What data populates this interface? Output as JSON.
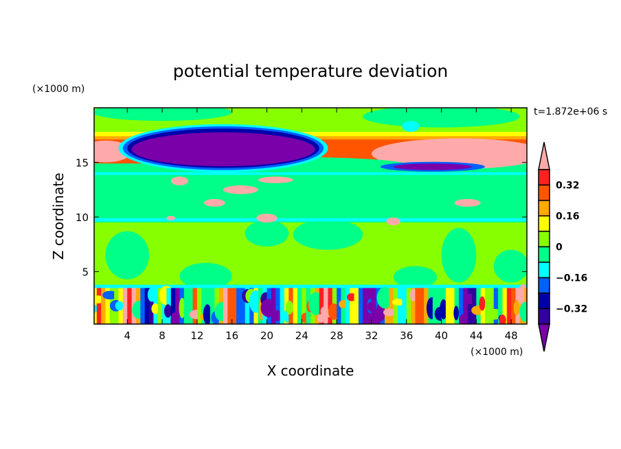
{
  "chart_data": {
    "type": "heatmap",
    "subtype": "filled-contour",
    "title": "potential temperature deviation",
    "xlabel": "X coordinate",
    "ylabel": "Z coordinate",
    "x_unit": "(×1000 m)",
    "y_unit": "(×1000 m)",
    "time_label": "t=1.872e+06 s",
    "xlim": [
      0.2,
      49.8
    ],
    "ylim": [
      0.2,
      20
    ],
    "xticks": [
      4,
      8,
      12,
      16,
      20,
      24,
      28,
      32,
      36,
      40,
      44,
      48
    ],
    "yticks": [
      5,
      10,
      15
    ],
    "colorbar": {
      "levels": [
        -0.4,
        -0.32,
        -0.24,
        -0.16,
        -0.08,
        0,
        0.08,
        0.16,
        0.24,
        0.32,
        0.4
      ],
      "tick_labels": [
        "0.32",
        "0.16",
        "0",
        "−0.16",
        "−0.32"
      ],
      "tick_values": [
        0.32,
        0.16,
        0,
        -0.16,
        -0.32
      ],
      "colors": [
        "#7a00aa",
        "#3300a0",
        "#0000aa",
        "#0060ff",
        "#00ffff",
        "#00ff88",
        "#88ff00",
        "#ffff00",
        "#ffaa00",
        "#ff5500",
        "#ff2020",
        "#ffaaaa"
      ],
      "extend": "both"
    },
    "regions": [
      {
        "c": 5,
        "shape": "rect",
        "x0": 0,
        "x1": 50,
        "z0": 0,
        "z1": 20
      },
      {
        "c": 6,
        "shape": "rect",
        "x0": 0,
        "x1": 50,
        "z0": 3.7,
        "z1": 9.5
      },
      {
        "c": 5,
        "shape": "ellipse",
        "x": 4,
        "z": 6.5,
        "rx": 2.5,
        "rz": 2.2
      },
      {
        "c": 5,
        "shape": "ellipse",
        "x": 13,
        "z": 4.6,
        "rx": 3,
        "rz": 1.2
      },
      {
        "c": 5,
        "shape": "ellipse",
        "x": 20,
        "z": 8.5,
        "rx": 2.5,
        "rz": 1.2
      },
      {
        "c": 5,
        "shape": "ellipse",
        "x": 27,
        "z": 8.4,
        "rx": 4,
        "rz": 1.4
      },
      {
        "c": 5,
        "shape": "ellipse",
        "x": 37,
        "z": 4.5,
        "rx": 2.5,
        "rz": 1.0
      },
      {
        "c": 5,
        "shape": "ellipse",
        "x": 42,
        "z": 6.5,
        "rx": 2,
        "rz": 2.5
      },
      {
        "c": 5,
        "shape": "ellipse",
        "x": 48,
        "z": 5.5,
        "rx": 2,
        "rz": 1.5
      },
      {
        "c": 4,
        "shape": "rect",
        "x0": 0,
        "x1": 50,
        "z0": 3.5,
        "z1": 3.8
      },
      {
        "c": 4,
        "shape": "rect",
        "x0": 0,
        "x1": 50,
        "z0": 9.6,
        "z1": 9.9
      },
      {
        "c": 4,
        "shape": "rect",
        "x0": 0,
        "x1": 50,
        "z0": 13.85,
        "z1": 14.1
      },
      {
        "c": 6,
        "shape": "rect",
        "x0": 0,
        "x1": 50,
        "z0": 17.3,
        "z1": 20
      },
      {
        "c": 5,
        "shape": "ellipse",
        "x": 8,
        "z": 19.6,
        "rx": 8,
        "rz": 0.8
      },
      {
        "c": 5,
        "shape": "ellipse",
        "x": 40,
        "z": 19.2,
        "rx": 9,
        "rz": 1.0
      },
      {
        "c": 7,
        "shape": "rect",
        "x0": 0,
        "x1": 50,
        "z0": 15.8,
        "z1": 17.8
      },
      {
        "c": 8,
        "shape": "rect",
        "x0": 0,
        "x1": 50,
        "z0": 15.2,
        "z1": 17.4
      },
      {
        "c": 9,
        "shape": "rect",
        "x0": 0,
        "x1": 50,
        "z0": 14.9,
        "z1": 17.1
      },
      {
        "c": 11,
        "shape": "ellipse",
        "x": 1.5,
        "z": 16,
        "rx": 3,
        "rz": 1.0
      },
      {
        "c": 11,
        "shape": "ellipse",
        "x": 42,
        "z": 15.8,
        "rx": 10,
        "rz": 1.4
      },
      {
        "c": 5,
        "shape": "ellipse",
        "x": 22,
        "z": 14.8,
        "rx": 14,
        "rz": 0.7
      },
      {
        "c": 4,
        "shape": "ellipse",
        "x": 15,
        "z": 16.3,
        "rx": 12,
        "rz": 2.2
      },
      {
        "c": 3,
        "shape": "ellipse",
        "x": 15,
        "z": 16.3,
        "rx": 11.5,
        "rz": 2.0
      },
      {
        "c": 2,
        "shape": "ellipse",
        "x": 15,
        "z": 16.3,
        "rx": 11,
        "rz": 1.8
      },
      {
        "c": 0,
        "shape": "ellipse",
        "x": 15,
        "z": 16.2,
        "rx": 10.5,
        "rz": 1.55
      },
      {
        "c": 3,
        "shape": "ellipse",
        "x": 39,
        "z": 14.6,
        "rx": 6,
        "rz": 0.45
      },
      {
        "c": 0,
        "shape": "ellipse",
        "x": 39,
        "z": 14.6,
        "rx": 4.5,
        "rz": 0.3
      },
      {
        "c": 4,
        "shape": "ellipse",
        "x": 36.5,
        "z": 18.3,
        "rx": 1,
        "rz": 0.5
      },
      {
        "c": 11,
        "shape": "ellipse",
        "x": 10,
        "z": 13.3,
        "rx": 1,
        "rz": 0.4
      },
      {
        "c": 11,
        "shape": "ellipse",
        "x": 17,
        "z": 12.5,
        "rx": 2,
        "rz": 0.4
      },
      {
        "c": 11,
        "shape": "ellipse",
        "x": 21,
        "z": 13.4,
        "rx": 2,
        "rz": 0.3
      },
      {
        "c": 11,
        "shape": "ellipse",
        "x": 14,
        "z": 11.3,
        "rx": 1.2,
        "rz": 0.35
      },
      {
        "c": 11,
        "shape": "ellipse",
        "x": 20,
        "z": 9.9,
        "rx": 1.2,
        "rz": 0.4
      },
      {
        "c": 11,
        "shape": "ellipse",
        "x": 34.5,
        "z": 9.6,
        "rx": 0.8,
        "rz": 0.35
      },
      {
        "c": 11,
        "shape": "ellipse",
        "x": 43,
        "z": 11.3,
        "rx": 1.5,
        "rz": 0.35
      },
      {
        "c": 11,
        "shape": "ellipse",
        "x": 9,
        "z": 9.9,
        "rx": 0.5,
        "rz": 0.2
      }
    ],
    "boundary_layer_zmax": 3.5
  }
}
